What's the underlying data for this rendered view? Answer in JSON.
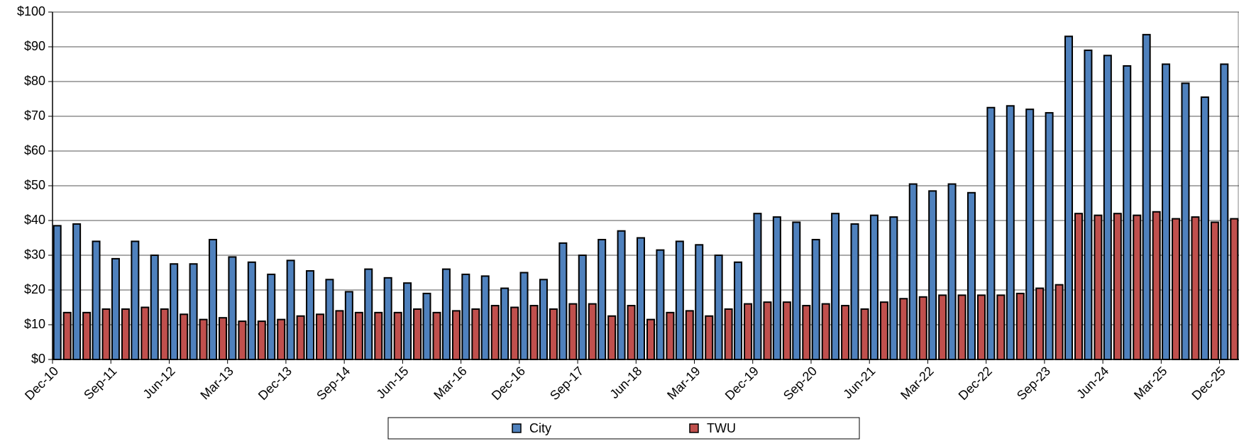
{
  "chart_data": {
    "type": "bar",
    "categories": [
      "Dec-10",
      null,
      null,
      "Sep-11",
      null,
      null,
      "Jun-12",
      null,
      null,
      "Mar-13",
      null,
      null,
      "Dec-13",
      null,
      null,
      "Sep-14",
      null,
      null,
      "Jun-15",
      null,
      null,
      "Mar-16",
      null,
      null,
      "Dec-16",
      null,
      null,
      "Sep-17",
      null,
      null,
      "Jun-18",
      null,
      null,
      "Mar-19",
      null,
      null,
      "Dec-19",
      null,
      null,
      "Sep-20",
      null,
      null,
      "Jun-21",
      null,
      null,
      "Mar-22",
      null,
      null,
      "Dec-22",
      null,
      null,
      "Sep-23",
      null,
      null,
      "Jun-24",
      null,
      null,
      "Mar-25",
      null,
      null,
      "Dec-25"
    ],
    "series": [
      {
        "name": "City",
        "color": "#4f81bd",
        "values": [
          38.5,
          39,
          34,
          29,
          34,
          30,
          27.5,
          27.5,
          34.5,
          29.5,
          28,
          24.5,
          28.5,
          25.5,
          23,
          19.5,
          26,
          23.5,
          22,
          19,
          26,
          24.5,
          24,
          20.5,
          25,
          23,
          33.5,
          30,
          34.5,
          37,
          35,
          31.5,
          34,
          33,
          30,
          28,
          42,
          41,
          39.5,
          34.5,
          42,
          39,
          41.5,
          41,
          50.5,
          48.5,
          50.5,
          48,
          72.5,
          73,
          72,
          71,
          93,
          89,
          87.5,
          84.5,
          93.5,
          85,
          79.5,
          75.5,
          85
        ]
      },
      {
        "name": "TWU",
        "color": "#c0504d",
        "values": [
          13.5,
          13.5,
          14.5,
          14.5,
          15,
          14.5,
          13,
          11.5,
          12,
          11,
          11,
          11.5,
          12.5,
          13,
          14,
          13.5,
          13.5,
          13.5,
          14.5,
          13.5,
          14,
          14.5,
          15.5,
          15,
          15.5,
          14.5,
          16,
          16,
          12.5,
          15.5,
          11.5,
          13.5,
          14,
          12.5,
          14.5,
          16,
          16.5,
          16.5,
          15.5,
          16,
          15.5,
          14.5,
          16.5,
          17.5,
          18,
          18.5,
          18.5,
          18.5,
          18.5,
          19,
          20.5,
          21.5,
          42,
          41.5,
          42,
          41.5,
          42.5,
          40.5,
          41,
          39.5,
          40.5
        ]
      }
    ],
    "ylim": [
      0,
      100
    ],
    "yticks": [
      {
        "value": 0,
        "label": "$0"
      },
      {
        "value": 10,
        "label": "$10"
      },
      {
        "value": 20,
        "label": "$20"
      },
      {
        "value": 30,
        "label": "$30"
      },
      {
        "value": 40,
        "label": "$40"
      },
      {
        "value": 50,
        "label": "$50"
      },
      {
        "value": 60,
        "label": "$60"
      },
      {
        "value": 70,
        "label": "$70"
      },
      {
        "value": 80,
        "label": "$80"
      },
      {
        "value": 90,
        "label": "$90"
      },
      {
        "value": 100,
        "label": "$100"
      }
    ],
    "grid": true,
    "legend": "bottom"
  }
}
